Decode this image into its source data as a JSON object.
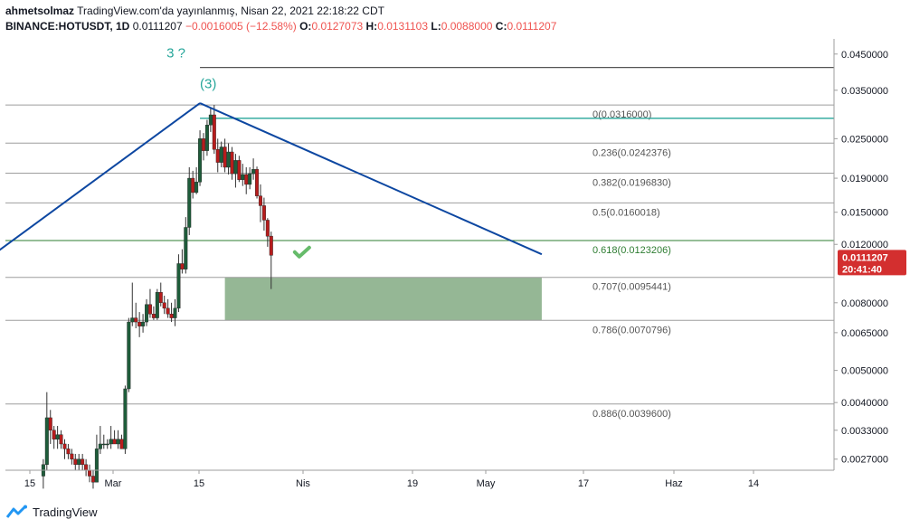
{
  "header": {
    "author": "ahmetsolmaz",
    "published": "TradingView.com'da yayınlanmış, Nisan 22, 2021 22:18:22 CDT",
    "symbol": "BINANCE:HOTUSDT, 1D",
    "last": "0.0111207",
    "change": "−0.0016005 (−12.58%)",
    "o_label": "O:",
    "o_value": "0.0127073",
    "h_label": "H:",
    "h_value": "0.0131103",
    "l_label": "L:",
    "l_value": "0.0088000",
    "c_label": "C:",
    "c_value": "0.0111207"
  },
  "footer": {
    "brand": "TradingView"
  },
  "colors": {
    "up": "#26a69a",
    "candle_up": "#1e5c3a",
    "down": "#b71c1c",
    "trend": "#0d47a1",
    "fib": "#9e9e9e",
    "fib_green": "#2e7d32",
    "zone": "#8fb38f",
    "teal_line": "#26a69a",
    "price_badge": "#d32f2f"
  },
  "chart_data": {
    "type": "candlestick",
    "y_scale": "log",
    "ylim": [
      0.0025,
      0.05
    ],
    "y_ticks": [
      "0.0450000",
      "0.0350000",
      "0.0250000",
      "0.0190000",
      "0.0150000",
      "0.0120000",
      "0.0080000",
      "0.0065000",
      "0.0050000",
      "0.0040000",
      "0.0033000",
      "0.0027000"
    ],
    "x_ticks": [
      "15",
      "Mar",
      "15",
      "Nis",
      "19",
      "May",
      "17",
      "Haz",
      "14"
    ],
    "current_price": "0.0111207",
    "countdown": "20:41:40",
    "wave_labels": [
      {
        "text": "(3)",
        "date": "2021-04-05",
        "price": 0.0355
      },
      {
        "text": "3 ?",
        "date": "2021-04-04",
        "price": 0.044
      }
    ],
    "fib_levels": [
      {
        "ratio": "0",
        "price": 0.0316,
        "label": "0(0.0316000)"
      },
      {
        "ratio": "0.236",
        "price": 0.0242376,
        "label": "0.236(0.0242376)"
      },
      {
        "ratio": "0.382",
        "price": 0.019683,
        "label": "0.382(0.0196830)"
      },
      {
        "ratio": "0.5",
        "price": 0.0160018,
        "label": "0.5(0.0160018)"
      },
      {
        "ratio": "0.618",
        "price": 0.0123206,
        "label": "0.618(0.0123206)"
      },
      {
        "ratio": "0.707",
        "price": 0.0095441,
        "label": "0.707(0.0095441)"
      },
      {
        "ratio": "0.786",
        "price": 0.0070796,
        "label": "0.786(0.0070796)"
      },
      {
        "ratio": "0.886",
        "price": 0.00396,
        "label": "0.886(0.0039600)"
      }
    ],
    "horizontal_lines": [
      {
        "price": 0.041,
        "date_from": "2021-04-05",
        "color": "dark"
      },
      {
        "price": 0.0288,
        "date_from": "2021-04-05",
        "color": "teal"
      }
    ],
    "trendlines": [
      {
        "from": {
          "date": "2021-01-28",
          "price": 0.0095
        },
        "to": {
          "date": "2021-04-05",
          "price": 0.032
        }
      },
      {
        "from": {
          "date": "2021-04-05",
          "price": 0.032
        },
        "to": {
          "date": "2021-07-10",
          "price": 0.0112
        }
      }
    ],
    "zone": {
      "date_from": "2021-04-12",
      "date_to": "2021-07-10",
      "price_top": 0.0095441,
      "price_bottom": 0.0070796
    },
    "checkmark": {
      "date": "2021-04-24",
      "price": 0.0113
    },
    "candles": [
      {
        "d": "2021-02-20",
        "o": 0.0024,
        "h": 0.0027,
        "l": 0.0022,
        "c": 0.0026
      },
      {
        "d": "2021-02-21",
        "o": 0.0026,
        "h": 0.0043,
        "l": 0.0025,
        "c": 0.0036
      },
      {
        "d": "2021-02-22",
        "o": 0.0036,
        "h": 0.0038,
        "l": 0.003,
        "c": 0.0033
      },
      {
        "d": "2021-02-23",
        "o": 0.0033,
        "h": 0.0034,
        "l": 0.0029,
        "c": 0.0031
      },
      {
        "d": "2021-02-24",
        "o": 0.0031,
        "h": 0.0034,
        "l": 0.0029,
        "c": 0.0032
      },
      {
        "d": "2021-02-25",
        "o": 0.0032,
        "h": 0.0033,
        "l": 0.0029,
        "c": 0.003
      },
      {
        "d": "2021-02-26",
        "o": 0.003,
        "h": 0.0031,
        "l": 0.0027,
        "c": 0.0029
      },
      {
        "d": "2021-02-27",
        "o": 0.0029,
        "h": 0.003,
        "l": 0.0027,
        "c": 0.0028
      },
      {
        "d": "2021-02-28",
        "o": 0.0028,
        "h": 0.0029,
        "l": 0.0026,
        "c": 0.0027
      },
      {
        "d": "2021-03-01",
        "o": 0.0027,
        "h": 0.0028,
        "l": 0.0025,
        "c": 0.0026
      },
      {
        "d": "2021-03-02",
        "o": 0.0026,
        "h": 0.0028,
        "l": 0.0025,
        "c": 0.0027
      },
      {
        "d": "2021-03-03",
        "o": 0.0027,
        "h": 0.0028,
        "l": 0.0025,
        "c": 0.0026
      },
      {
        "d": "2021-03-04",
        "o": 0.0026,
        "h": 0.0027,
        "l": 0.0024,
        "c": 0.0025
      },
      {
        "d": "2021-03-05",
        "o": 0.0025,
        "h": 0.0026,
        "l": 0.0023,
        "c": 0.0024
      },
      {
        "d": "2021-03-06",
        "o": 0.0024,
        "h": 0.0025,
        "l": 0.0022,
        "c": 0.0023
      },
      {
        "d": "2021-03-07",
        "o": 0.0023,
        "h": 0.0032,
        "l": 0.0023,
        "c": 0.0029
      },
      {
        "d": "2021-03-08",
        "o": 0.0029,
        "h": 0.0034,
        "l": 0.0028,
        "c": 0.003
      },
      {
        "d": "2021-03-09",
        "o": 0.003,
        "h": 0.0032,
        "l": 0.0029,
        "c": 0.003
      },
      {
        "d": "2021-03-10",
        "o": 0.003,
        "h": 0.0031,
        "l": 0.0029,
        "c": 0.003
      },
      {
        "d": "2021-03-11",
        "o": 0.003,
        "h": 0.0034,
        "l": 0.0029,
        "c": 0.0031
      },
      {
        "d": "2021-03-12",
        "o": 0.0031,
        "h": 0.0033,
        "l": 0.003,
        "c": 0.003
      },
      {
        "d": "2021-03-13",
        "o": 0.003,
        "h": 0.0033,
        "l": 0.0029,
        "c": 0.0031
      },
      {
        "d": "2021-03-14",
        "o": 0.0031,
        "h": 0.0032,
        "l": 0.0029,
        "c": 0.0029
      },
      {
        "d": "2021-03-15",
        "o": 0.0029,
        "h": 0.0045,
        "l": 0.0028,
        "c": 0.0044
      },
      {
        "d": "2021-03-16",
        "o": 0.0044,
        "h": 0.0072,
        "l": 0.0043,
        "c": 0.007
      },
      {
        "d": "2021-03-17",
        "o": 0.007,
        "h": 0.0092,
        "l": 0.0068,
        "c": 0.0072
      },
      {
        "d": "2021-03-18",
        "o": 0.0072,
        "h": 0.008,
        "l": 0.0067,
        "c": 0.007
      },
      {
        "d": "2021-03-19",
        "o": 0.007,
        "h": 0.0075,
        "l": 0.0063,
        "c": 0.0068
      },
      {
        "d": "2021-03-20",
        "o": 0.0068,
        "h": 0.0074,
        "l": 0.0065,
        "c": 0.007
      },
      {
        "d": "2021-03-21",
        "o": 0.007,
        "h": 0.0082,
        "l": 0.0068,
        "c": 0.0079
      },
      {
        "d": "2021-03-22",
        "o": 0.0079,
        "h": 0.0088,
        "l": 0.0072,
        "c": 0.0074
      },
      {
        "d": "2021-03-23",
        "o": 0.0074,
        "h": 0.0078,
        "l": 0.0071,
        "c": 0.0072
      },
      {
        "d": "2021-03-24",
        "o": 0.0072,
        "h": 0.0088,
        "l": 0.0071,
        "c": 0.0086
      },
      {
        "d": "2021-03-25",
        "o": 0.0086,
        "h": 0.0092,
        "l": 0.0078,
        "c": 0.008
      },
      {
        "d": "2021-03-26",
        "o": 0.008,
        "h": 0.0084,
        "l": 0.0074,
        "c": 0.0077
      },
      {
        "d": "2021-03-27",
        "o": 0.0077,
        "h": 0.0082,
        "l": 0.0072,
        "c": 0.0074
      },
      {
        "d": "2021-03-28",
        "o": 0.0074,
        "h": 0.008,
        "l": 0.007,
        "c": 0.0072
      },
      {
        "d": "2021-03-29",
        "o": 0.0072,
        "h": 0.0082,
        "l": 0.0068,
        "c": 0.0077
      },
      {
        "d": "2021-03-30",
        "o": 0.0077,
        "h": 0.0112,
        "l": 0.0075,
        "c": 0.0105
      },
      {
        "d": "2021-03-31",
        "o": 0.0105,
        "h": 0.0116,
        "l": 0.0098,
        "c": 0.0101
      },
      {
        "d": "2021-04-01",
        "o": 0.0101,
        "h": 0.0145,
        "l": 0.0098,
        "c": 0.0135
      },
      {
        "d": "2021-04-02",
        "o": 0.0135,
        "h": 0.0205,
        "l": 0.0128,
        "c": 0.019
      },
      {
        "d": "2021-04-03",
        "o": 0.019,
        "h": 0.02,
        "l": 0.0165,
        "c": 0.0172
      },
      {
        "d": "2021-04-04",
        "o": 0.0172,
        "h": 0.0205,
        "l": 0.017,
        "c": 0.0185
      },
      {
        "d": "2021-04-05",
        "o": 0.0185,
        "h": 0.0265,
        "l": 0.018,
        "c": 0.025
      },
      {
        "d": "2021-04-06",
        "o": 0.025,
        "h": 0.026,
        "l": 0.0215,
        "c": 0.023
      },
      {
        "d": "2021-04-07",
        "o": 0.023,
        "h": 0.0285,
        "l": 0.0222,
        "c": 0.0275
      },
      {
        "d": "2021-04-08",
        "o": 0.0275,
        "h": 0.031,
        "l": 0.0262,
        "c": 0.0295
      },
      {
        "d": "2021-04-09",
        "o": 0.0295,
        "h": 0.0316,
        "l": 0.0225,
        "c": 0.0232
      },
      {
        "d": "2021-04-10",
        "o": 0.0232,
        "h": 0.025,
        "l": 0.0198,
        "c": 0.0212
      },
      {
        "d": "2021-04-11",
        "o": 0.0212,
        "h": 0.0245,
        "l": 0.0205,
        "c": 0.0236
      },
      {
        "d": "2021-04-12",
        "o": 0.0236,
        "h": 0.025,
        "l": 0.0198,
        "c": 0.0205
      },
      {
        "d": "2021-04-13",
        "o": 0.0205,
        "h": 0.0242,
        "l": 0.0195,
        "c": 0.0228
      },
      {
        "d": "2021-04-14",
        "o": 0.0228,
        "h": 0.0236,
        "l": 0.0188,
        "c": 0.0196
      },
      {
        "d": "2021-04-15",
        "o": 0.0196,
        "h": 0.0225,
        "l": 0.0178,
        "c": 0.0215
      },
      {
        "d": "2021-04-16",
        "o": 0.0215,
        "h": 0.0222,
        "l": 0.0185,
        "c": 0.0188
      },
      {
        "d": "2021-04-17",
        "o": 0.0188,
        "h": 0.021,
        "l": 0.018,
        "c": 0.0195
      },
      {
        "d": "2021-04-18",
        "o": 0.0195,
        "h": 0.0205,
        "l": 0.017,
        "c": 0.0182
      },
      {
        "d": "2021-04-19",
        "o": 0.0182,
        "h": 0.0205,
        "l": 0.0176,
        "c": 0.0196
      },
      {
        "d": "2021-04-20",
        "o": 0.0196,
        "h": 0.0218,
        "l": 0.0188,
        "c": 0.0202
      },
      {
        "d": "2021-04-21",
        "o": 0.0202,
        "h": 0.0206,
        "l": 0.0165,
        "c": 0.0168
      },
      {
        "d": "2021-04-22",
        "o": 0.0168,
        "h": 0.0182,
        "l": 0.014,
        "c": 0.0157
      },
      {
        "d": "2021-04-23",
        "o": 0.0157,
        "h": 0.0166,
        "l": 0.0132,
        "c": 0.0142
      },
      {
        "d": "2021-04-24",
        "o": 0.0142,
        "h": 0.0144,
        "l": 0.0118,
        "c": 0.0127
      },
      {
        "d": "2021-04-25",
        "o": 0.0127073,
        "h": 0.0131103,
        "l": 0.0088,
        "c": 0.0111207
      }
    ]
  }
}
